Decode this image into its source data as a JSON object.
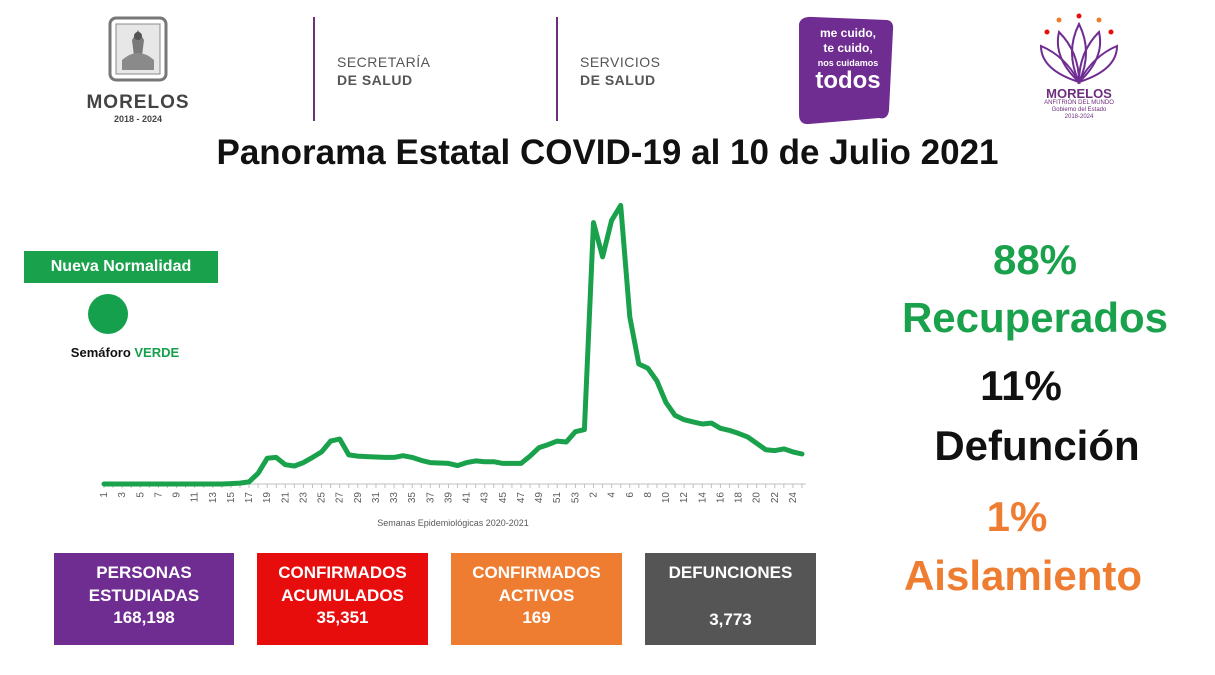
{
  "header": {
    "state_name": "MORELOS",
    "state_years": "2018 - 2024",
    "dept1_line1": "SECRETARÍA",
    "dept1_line2": "DE SALUD",
    "dept2_line1": "SERVICIOS",
    "dept2_line2": "DE SALUD",
    "slogan_line1": "me cuido,",
    "slogan_line2": "te cuido,",
    "slogan_line3": "nos cuidamos",
    "slogan_line4": "todos",
    "right_logo_name": "MORELOS",
    "right_logo_sub1": "ANFITRIÓN DEL MUNDO",
    "right_logo_sub2": "Gobierno del Estado",
    "right_logo_sub3": "2018-2024"
  },
  "title": "Panorama Estatal COVID-19 al 10 de Julio 2021",
  "semaforo": {
    "badge": "Nueva Normalidad",
    "label": "Semáforo",
    "state": "VERDE",
    "color": "#14a04c"
  },
  "stats": {
    "recovered_pct": "88%",
    "recovered_label": "Recuperados",
    "deaths_pct": "11%",
    "deaths_label": "Defunción",
    "isolation_pct": "1%",
    "isolation_label": "Aislamiento"
  },
  "boxes": [
    {
      "line1": "PERSONAS",
      "line2": "ESTUDIADAS",
      "value": "168,198",
      "color": "#6f2c91"
    },
    {
      "line1": "CONFIRMADOS",
      "line2": "ACUMULADOS",
      "value": "35,351",
      "color": "#e80d0d"
    },
    {
      "line1": "CONFIRMADOS",
      "line2": "ACTIVOS",
      "value": "169",
      "color": "#ef7d31"
    },
    {
      "line1": "DEFUNCIONES",
      "line2": "",
      "value": "3,773",
      "color": "#555555"
    }
  ],
  "chart_data": {
    "type": "line",
    "xlabel": "Semanas Epidemiológicas 2020-2021",
    "ylabel": "",
    "tick_labels": [
      "1",
      "3",
      "5",
      "7",
      "9",
      "11",
      "13",
      "15",
      "17",
      "19",
      "21",
      "23",
      "25",
      "27",
      "29",
      "31",
      "33",
      "35",
      "37",
      "39",
      "41",
      "43",
      "45",
      "47",
      "49",
      "51",
      "53",
      "2",
      "4",
      "6",
      "8",
      "10",
      "12",
      "14",
      "16",
      "18",
      "20",
      "22",
      "24"
    ],
    "x": [
      "1",
      "2",
      "3",
      "4",
      "5",
      "6",
      "7",
      "8",
      "9",
      "10",
      "11",
      "12",
      "13",
      "14",
      "15",
      "16",
      "17",
      "18",
      "19",
      "20",
      "21",
      "22",
      "23",
      "24",
      "25",
      "26",
      "27",
      "28",
      "29",
      "30",
      "31",
      "32",
      "33",
      "34",
      "35",
      "36",
      "37",
      "38",
      "39",
      "40",
      "41",
      "42",
      "43",
      "44",
      "45",
      "46",
      "47",
      "48",
      "49",
      "50",
      "51",
      "52",
      "53",
      "1",
      "2",
      "3",
      "4",
      "5",
      "6",
      "7",
      "8",
      "9",
      "10",
      "11",
      "12",
      "13",
      "14",
      "15",
      "16",
      "17",
      "18",
      "19",
      "20",
      "21",
      "22",
      "23",
      "24",
      "25"
    ],
    "series": [
      {
        "values": [
          0,
          0,
          0,
          0,
          0,
          0,
          0,
          0,
          0,
          0,
          0,
          0,
          0,
          0,
          1,
          2,
          5,
          25,
          60,
          62,
          45,
          42,
          50,
          62,
          75,
          100,
          105,
          68,
          65,
          64,
          63,
          62,
          62,
          66,
          62,
          55,
          50,
          49,
          48,
          43,
          50,
          54,
          52,
          52,
          48,
          48,
          48,
          65,
          85,
          92,
          100,
          98,
          122,
          127,
          610,
          530,
          615,
          650,
          390,
          280,
          270,
          240,
          190,
          160,
          150,
          145,
          140,
          142,
          130,
          125,
          118,
          110,
          95,
          80,
          78,
          82,
          75,
          70
        ],
        "color": "#1aa14c"
      }
    ],
    "ylim": [
      0,
      700
    ]
  }
}
